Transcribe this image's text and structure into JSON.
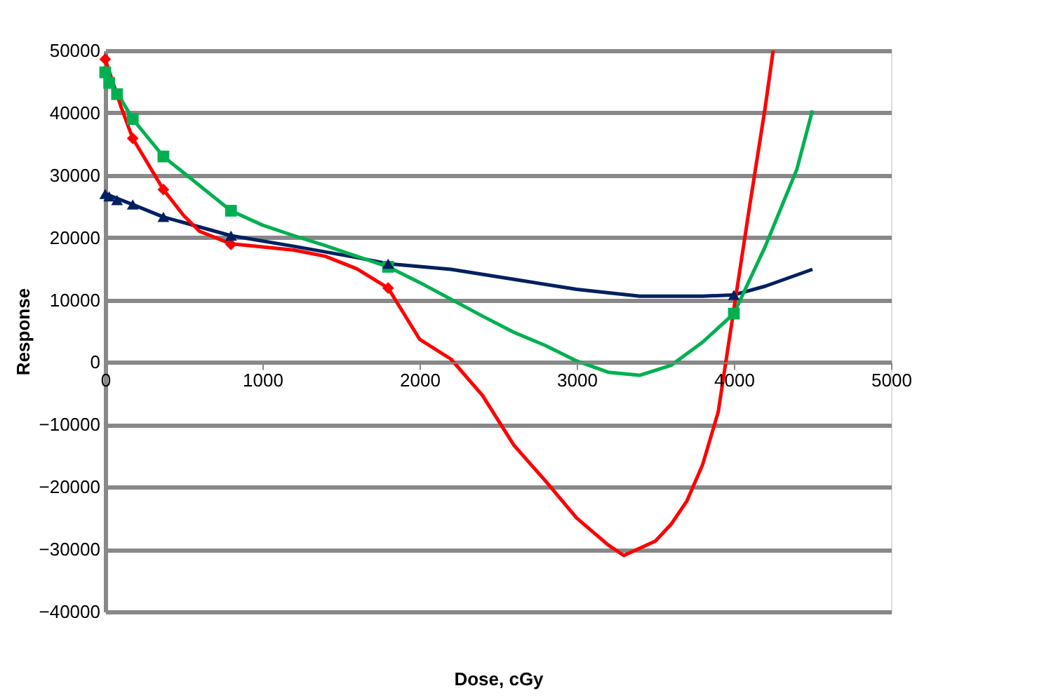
{
  "chart_data": {
    "type": "line",
    "xlabel": "Dose, cGy",
    "ylabel": "Response",
    "xlim": [
      0,
      5000
    ],
    "xticks": [
      0,
      1000,
      2000,
      3000,
      4000,
      5000
    ],
    "ylim": [
      -40000,
      50000
    ],
    "yticks": [
      -40000,
      -30000,
      -20000,
      -10000,
      0,
      10000,
      20000,
      30000,
      40000,
      50000
    ],
    "grid": "y",
    "line_style": "solid",
    "series": [
      {
        "color": "#002060",
        "marker": "none",
        "x": [
          0,
          175,
          370,
          800,
          1200,
          1600,
          1800,
          2200,
          2600,
          3000,
          3400,
          3800,
          4000,
          4200,
          4500
        ],
        "values": [
          27000,
          25300,
          23300,
          20300,
          18600,
          16800,
          15800,
          14900,
          13300,
          11700,
          10600,
          10600,
          10800,
          12200,
          14900
        ]
      },
      {
        "color": "#00b050",
        "marker": "none",
        "x": [
          0,
          175,
          370,
          800,
          1000,
          1200,
          1400,
          1600,
          1800,
          2000,
          2200,
          2400,
          2600,
          2800,
          3000,
          3200,
          3400,
          3600,
          3800,
          4000,
          4200,
          4400,
          4500
        ],
        "values": [
          46500,
          39000,
          33000,
          24300,
          22000,
          20300,
          18700,
          17000,
          15300,
          12800,
          10100,
          7400,
          4800,
          2700,
          200,
          -1600,
          -2100,
          -500,
          3200,
          7800,
          18600,
          30900,
          40400
        ]
      },
      {
        "color": "#ff0000",
        "marker": "none",
        "x": [
          0,
          100,
          175,
          370,
          500,
          600,
          800,
          1000,
          1200,
          1400,
          1600,
          1800,
          2000,
          2200,
          2400,
          2600,
          2800,
          3000,
          3200,
          3300,
          3500,
          3600,
          3700,
          3800,
          3900,
          4000,
          4100,
          4200,
          4250
        ],
        "values": [
          48600,
          41000,
          35900,
          27700,
          23500,
          21000,
          19000,
          18500,
          18000,
          17000,
          15000,
          11900,
          3700,
          500,
          -5300,
          -13300,
          -19000,
          -25000,
          -29300,
          -31000,
          -28700,
          -26000,
          -22300,
          -16500,
          -8000,
          8500,
          25000,
          41000,
          50000
        ]
      },
      {
        "type": "scatter",
        "color": "#00b050",
        "marker": "square",
        "x": [
          0,
          25,
          75,
          175,
          370,
          800,
          1800,
          4000
        ],
        "values": [
          46500,
          44800,
          43000,
          39000,
          33000,
          24300,
          15300,
          7800
        ]
      },
      {
        "type": "scatter",
        "color": "#ff0000",
        "marker": "diamond",
        "x": [
          0,
          175,
          370,
          800,
          1800
        ],
        "values": [
          48600,
          35900,
          27700,
          18900,
          11900
        ]
      },
      {
        "type": "scatter",
        "color": "#002060",
        "marker": "triangle",
        "x": [
          0,
          25,
          75,
          175,
          370,
          800,
          1800,
          4000
        ],
        "values": [
          27000,
          26600,
          26000,
          25300,
          23300,
          20300,
          15800,
          10800
        ]
      }
    ]
  }
}
